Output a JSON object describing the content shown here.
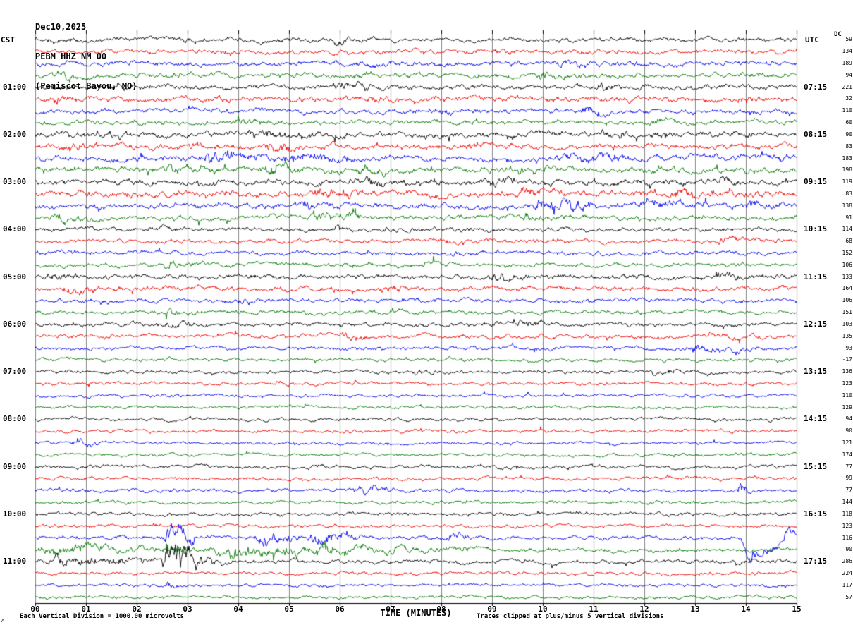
{
  "header": {
    "date": "Dec10,2025",
    "station_line": "PEBM HHZ NM 00",
    "location_line": "(Pemiscot Bayou, MO)"
  },
  "axes": {
    "left_title": "CST",
    "right_title": "UTC",
    "dc_title": "DC",
    "x_title": "TIME (MINUTES)",
    "x_ticks": [
      "00",
      "01",
      "02",
      "03",
      "04",
      "05",
      "06",
      "07",
      "08",
      "09",
      "10",
      "11",
      "12",
      "13",
      "14",
      "15"
    ]
  },
  "footer": {
    "scale_note": "Each Vertical Division = 1000.00 microvolts",
    "clip_note": "Traces clipped at plus/minus 5 vertical divisions",
    "corner_mark": "A"
  },
  "colors": {
    "black": "#000000",
    "red": "#ee0000",
    "blue": "#0000ee",
    "green": "#007700",
    "grid": "#858585",
    "axis": "#000000"
  },
  "chart_data": {
    "type": "line",
    "description": "Helicorder seismogram, 48 trace rows of 15 minutes each, colors cycle black/red/blue/green, hourly CST labels left and UTC labels right, per-trace DC offset in microvolts on far right. amp is relative background noise level; events are [start_min,end_min,extra_amplitude,optional_baseline_shift_px].",
    "x_range_minutes": [
      0,
      15
    ],
    "rows_per_hour": 4,
    "trace_color_cycle": [
      "black",
      "red",
      "blue",
      "green"
    ],
    "rows": [
      {
        "color": "black",
        "cst": "",
        "utc": "",
        "dc": 59,
        "amp": 1.7,
        "events": [
          [
            5.8,
            6.6,
            1.5
          ],
          [
            0.2,
            0.7,
            1.2
          ]
        ]
      },
      {
        "color": "red",
        "cst": "",
        "utc": "",
        "dc": 134,
        "amp": 1.7,
        "events": [
          [
            3.4,
            4.1,
            1.2
          ],
          [
            9.0,
            9.6,
            1.2
          ]
        ]
      },
      {
        "color": "blue",
        "cst": "",
        "utc": "",
        "dc": 189,
        "amp": 1.9,
        "events": [
          [
            10.2,
            11.1,
            1.8
          ],
          [
            6.2,
            6.8,
            1.2
          ]
        ]
      },
      {
        "color": "green",
        "cst": "",
        "utc": "",
        "dc": 94,
        "amp": 1.9,
        "events": [
          [
            9.8,
            10.5,
            2.2
          ],
          [
            6.2,
            6.7,
            1.8
          ],
          [
            0.3,
            1.0,
            1.5
          ]
        ]
      },
      {
        "color": "black",
        "cst": "01:00",
        "utc": "07:15",
        "dc": 221,
        "amp": 1.9,
        "events": [
          [
            5.8,
            6.6,
            3.2
          ],
          [
            1.4,
            2.1,
            1.5
          ],
          [
            11.0,
            11.6,
            1.5
          ]
        ]
      },
      {
        "color": "red",
        "cst": "",
        "utc": "",
        "dc": 32,
        "amp": 2.1,
        "events": [
          [
            0.2,
            0.9,
            2.0
          ],
          [
            13.8,
            14.4,
            1.8
          ],
          [
            6.5,
            7.2,
            1.5
          ]
        ]
      },
      {
        "color": "blue",
        "cst": "",
        "utc": "",
        "dc": 110,
        "amp": 1.8,
        "events": [
          [
            7.7,
            8.4,
            1.8
          ],
          [
            10.7,
            11.3,
            2.2
          ],
          [
            4.2,
            4.8,
            1.5
          ]
        ]
      },
      {
        "color": "green",
        "cst": "",
        "utc": "",
        "dc": 60,
        "amp": 1.8,
        "events": [
          [
            3.9,
            4.6,
            1.5
          ],
          [
            12.1,
            12.7,
            1.2
          ]
        ]
      },
      {
        "color": "black",
        "cst": "02:00",
        "utc": "08:15",
        "dc": 90,
        "amp": 2.3,
        "events": [
          [
            4.1,
            5.1,
            2.5
          ],
          [
            11.1,
            11.8,
            2.5
          ],
          [
            1.1,
            1.9,
            1.8
          ]
        ]
      },
      {
        "color": "red",
        "cst": "",
        "utc": "",
        "dc": 83,
        "amp": 2.1,
        "events": [
          [
            4.4,
            5.4,
            2.5
          ],
          [
            0.3,
            1.0,
            1.8
          ],
          [
            8.4,
            9.0,
            1.5
          ]
        ]
      },
      {
        "color": "blue",
        "cst": "",
        "utc": "",
        "dc": 183,
        "amp": 2.3,
        "events": [
          [
            3.2,
            4.4,
            3.5
          ],
          [
            4.8,
            6.3,
            3.0
          ],
          [
            10.2,
            11.7,
            3.0
          ],
          [
            14.5,
            15,
            2.2
          ]
        ]
      },
      {
        "color": "green",
        "cst": "",
        "utc": "",
        "dc": 198,
        "amp": 2.3,
        "events": [
          [
            2.5,
            3.7,
            2.8
          ],
          [
            4.5,
            5.4,
            2.8
          ],
          [
            9.2,
            10.4,
            2.6
          ],
          [
            6.3,
            7.1,
            2.2
          ]
        ]
      },
      {
        "color": "black",
        "cst": "03:00",
        "utc": "09:15",
        "dc": 119,
        "amp": 2.3,
        "events": [
          [
            13.4,
            13.9,
            2.5
          ],
          [
            6.4,
            7.3,
            1.8
          ],
          [
            8.9,
            9.6,
            1.8
          ]
        ]
      },
      {
        "color": "red",
        "cst": "",
        "utc": "",
        "dc": 83,
        "amp": 2.5,
        "events": [
          [
            5.4,
            6.3,
            2.2
          ],
          [
            9.4,
            10.3,
            2.2
          ],
          [
            12.5,
            13.5,
            2.2
          ]
        ]
      },
      {
        "color": "blue",
        "cst": "",
        "utc": "",
        "dc": 138,
        "amp": 2.1,
        "events": [
          [
            9.7,
            11.3,
            3.5
          ],
          [
            11.7,
            13.3,
            3.2
          ],
          [
            5.1,
            6.1,
            2.2
          ],
          [
            13.9,
            14.7,
            2.6
          ]
        ]
      },
      {
        "color": "green",
        "cst": "",
        "utc": "",
        "dc": 91,
        "amp": 1.9,
        "events": [
          [
            5.5,
            6.4,
            3.0
          ],
          [
            0.2,
            1.0,
            1.8
          ],
          [
            9.5,
            10.2,
            1.8
          ]
        ]
      },
      {
        "color": "black",
        "cst": "04:00",
        "utc": "10:15",
        "dc": 114,
        "amp": 1.7,
        "events": [
          [
            5.8,
            6.4,
            1.8
          ],
          [
            2.2,
            2.8,
            1.2
          ]
        ]
      },
      {
        "color": "red",
        "cst": "",
        "utc": "",
        "dc": 68,
        "amp": 1.6,
        "events": [
          [
            8.0,
            8.6,
            2.0
          ],
          [
            13.4,
            14.0,
            1.8
          ]
        ]
      },
      {
        "color": "blue",
        "cst": "",
        "utc": "",
        "dc": 152,
        "amp": 1.6,
        "events": [
          [
            8.0,
            8.6,
            2.0
          ],
          [
            0.4,
            1.1,
            1.4
          ]
        ]
      },
      {
        "color": "green",
        "cst": "",
        "utc": "",
        "dc": 106,
        "amp": 1.6,
        "events": [
          [
            2.5,
            3.3,
            1.8
          ],
          [
            7.6,
            8.2,
            1.3
          ]
        ]
      },
      {
        "color": "black",
        "cst": "05:00",
        "utc": "11:15",
        "dc": 133,
        "amp": 1.9,
        "events": [
          [
            0.1,
            0.8,
            1.8
          ],
          [
            8.9,
            9.7,
            1.8
          ],
          [
            13.3,
            14.1,
            2.0
          ]
        ]
      },
      {
        "color": "red",
        "cst": "",
        "utc": "",
        "dc": 164,
        "amp": 1.8,
        "events": [
          [
            0.5,
            1.3,
            2.2
          ],
          [
            6.7,
            7.4,
            1.6
          ]
        ]
      },
      {
        "color": "blue",
        "cst": "",
        "utc": "",
        "dc": 106,
        "amp": 1.6,
        "events": [
          [
            3.9,
            4.6,
            1.3
          ]
        ]
      },
      {
        "color": "green",
        "cst": "",
        "utc": "",
        "dc": 151,
        "amp": 1.5,
        "events": [
          [
            2.5,
            3.2,
            1.6
          ]
        ]
      },
      {
        "color": "black",
        "cst": "06:00",
        "utc": "12:15",
        "dc": 103,
        "amp": 1.7,
        "events": [
          [
            9.4,
            10.1,
            1.7
          ],
          [
            2.5,
            3.1,
            1.3
          ]
        ]
      },
      {
        "color": "red",
        "cst": "",
        "utc": "",
        "dc": 135,
        "amp": 1.7,
        "events": [
          [
            5.9,
            6.6,
            1.7
          ],
          [
            13.1,
            13.8,
            1.6
          ]
        ]
      },
      {
        "color": "blue",
        "cst": "",
        "utc": "",
        "dc": 93,
        "amp": 1.5,
        "events": [
          [
            12.8,
            13.6,
            2.2
          ],
          [
            13.7,
            14.2,
            2.0,
            6
          ]
        ]
      },
      {
        "color": "green",
        "cst": "",
        "utc": "",
        "dc": -17,
        "amp": 1.4,
        "events": []
      },
      {
        "color": "black",
        "cst": "07:00",
        "utc": "13:15",
        "dc": 136,
        "amp": 1.4,
        "events": [
          [
            7.3,
            8.0,
            1.6
          ],
          [
            12.1,
            12.8,
            1.5
          ]
        ]
      },
      {
        "color": "red",
        "cst": "",
        "utc": "",
        "dc": 123,
        "amp": 1.3,
        "events": [
          [
            4.6,
            5.2,
            1.0
          ]
        ]
      },
      {
        "color": "blue",
        "cst": "",
        "utc": "",
        "dc": 110,
        "amp": 1.2,
        "events": []
      },
      {
        "color": "green",
        "cst": "",
        "utc": "",
        "dc": 129,
        "amp": 1.2,
        "events": []
      },
      {
        "color": "black",
        "cst": "08:00",
        "utc": "14:15",
        "dc": 94,
        "amp": 1.3,
        "events": [
          [
            6.0,
            6.6,
            1.0
          ]
        ]
      },
      {
        "color": "red",
        "cst": "",
        "utc": "",
        "dc": 90,
        "amp": 1.3,
        "events": []
      },
      {
        "color": "blue",
        "cst": "",
        "utc": "",
        "dc": 121,
        "amp": 1.2,
        "events": [
          [
            0.7,
            1.3,
            2.6
          ]
        ]
      },
      {
        "color": "green",
        "cst": "",
        "utc": "",
        "dc": 174,
        "amp": 1.2,
        "events": []
      },
      {
        "color": "black",
        "cst": "09:00",
        "utc": "15:15",
        "dc": 77,
        "amp": 1.4,
        "events": []
      },
      {
        "color": "red",
        "cst": "",
        "utc": "",
        "dc": 99,
        "amp": 1.3,
        "events": []
      },
      {
        "color": "blue",
        "cst": "",
        "utc": "",
        "dc": 77,
        "amp": 1.4,
        "events": [
          [
            6.2,
            7.1,
            2.6
          ],
          [
            13.82,
            14.1,
            7.0
          ]
        ]
      },
      {
        "color": "green",
        "cst": "",
        "utc": "",
        "dc": 144,
        "amp": 1.3,
        "events": []
      },
      {
        "color": "black",
        "cst": "10:00",
        "utc": "16:15",
        "dc": 118,
        "amp": 1.4,
        "events": []
      },
      {
        "color": "red",
        "cst": "",
        "utc": "",
        "dc": 123,
        "amp": 1.3,
        "events": []
      },
      {
        "color": "blue",
        "cst": "",
        "utc": "",
        "dc": 116,
        "amp": 1.5,
        "events": [
          [
            2.5,
            3.15,
            9,
            0
          ],
          [
            4.3,
            5.2,
            5
          ],
          [
            5.3,
            6.4,
            4.5
          ],
          [
            7.9,
            8.6,
            2
          ],
          [
            13.9,
            14.75,
            3,
            34
          ],
          [
            14.76,
            15,
            2,
            -8
          ]
        ]
      },
      {
        "color": "green",
        "cst": "",
        "utc": "",
        "dc": 90,
        "amp": 1.6,
        "events": [
          [
            0,
            2.5,
            2.8
          ],
          [
            2.5,
            3.05,
            7
          ],
          [
            3.05,
            8.0,
            3.4
          ],
          [
            8.0,
            8.7,
            1.8
          ]
        ]
      },
      {
        "color": "black",
        "cst": "11:00",
        "utc": "17:15",
        "dc": 286,
        "amp": 1.6,
        "events": [
          [
            0,
            2.4,
            3.4
          ],
          [
            2.45,
            3.3,
            12
          ],
          [
            3.3,
            3.8,
            2.5
          ]
        ]
      },
      {
        "color": "red",
        "cst": "",
        "utc": "",
        "dc": 224,
        "amp": 1.3,
        "events": []
      },
      {
        "color": "blue",
        "cst": "",
        "utc": "",
        "dc": 117,
        "amp": 1.2,
        "events": [
          [
            2.55,
            2.85,
            2.2
          ]
        ]
      },
      {
        "color": "green",
        "cst": "",
        "utc": "",
        "dc": 57,
        "amp": 1.2,
        "events": []
      }
    ]
  }
}
